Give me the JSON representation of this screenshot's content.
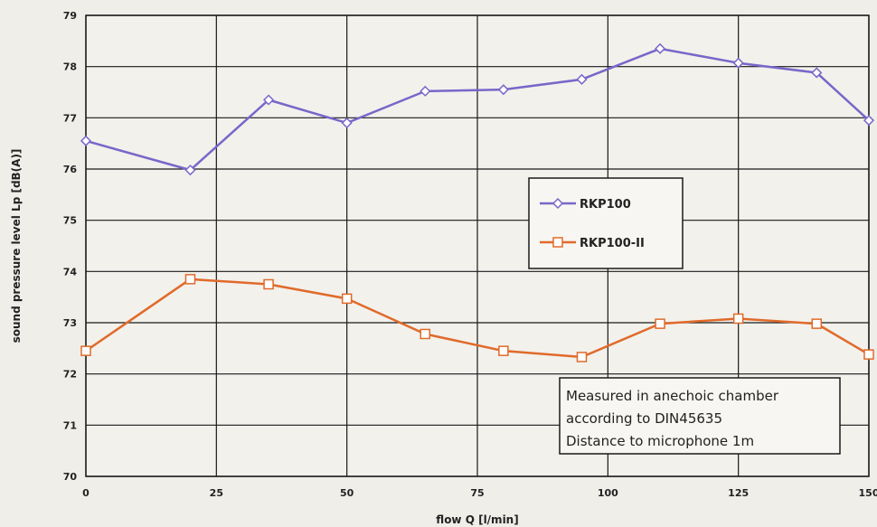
{
  "chart_data": {
    "type": "line",
    "title": "",
    "xlabel": "flow Q [l/min]",
    "ylabel": "sound pressure level Lp [dB(A)]",
    "xlim": [
      0,
      150
    ],
    "ylim": [
      70,
      79
    ],
    "x_ticks": [
      0,
      25,
      50,
      75,
      100,
      125,
      150
    ],
    "y_ticks": [
      70,
      71,
      72,
      73,
      74,
      75,
      76,
      77,
      78,
      79
    ],
    "grid": true,
    "legend_position": "center-right",
    "series": [
      {
        "name": "RKP100",
        "color": "#7a66c9",
        "marker": "diamond",
        "x": [
          0,
          20,
          35,
          50,
          65,
          80,
          95,
          110,
          125,
          140,
          150
        ],
        "y": [
          76.55,
          75.98,
          77.35,
          76.9,
          77.52,
          77.55,
          77.75,
          78.35,
          78.07,
          77.88,
          76.95
        ]
      },
      {
        "name": "RKP100-II",
        "color": "#e06a2a",
        "marker": "square",
        "x": [
          0,
          20,
          35,
          50,
          65,
          80,
          95,
          110,
          125,
          140,
          150
        ],
        "y": [
          72.45,
          73.85,
          73.75,
          73.47,
          72.78,
          72.45,
          72.33,
          72.98,
          73.08,
          72.98,
          72.38
        ]
      }
    ],
    "annotation": {
      "lines": [
        "Measured in anechoic chamber",
        "according to DIN45635",
        "Distance to microphone 1m"
      ]
    }
  }
}
